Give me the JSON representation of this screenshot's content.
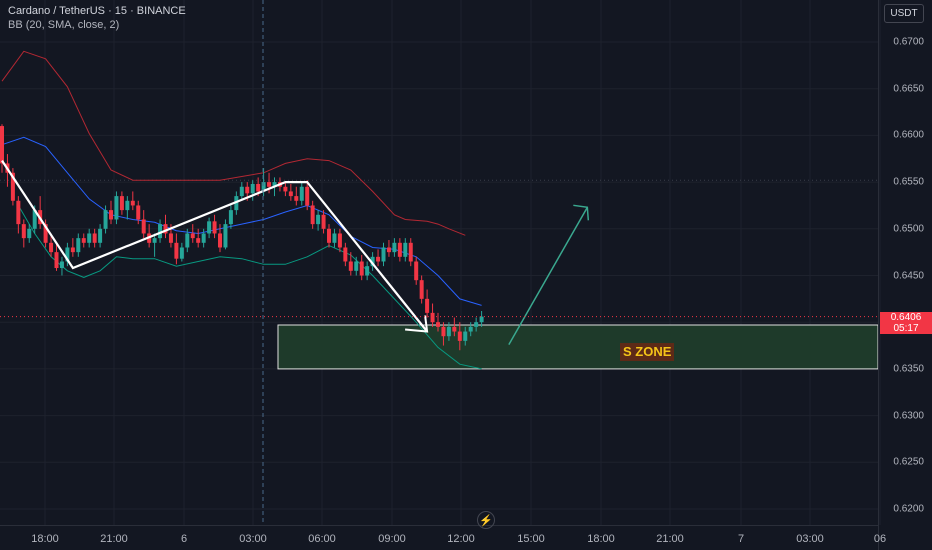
{
  "header": {
    "symbol_line": "Cardano / TetherUS · 15 · BINANCE",
    "indicator_line": "BB (20, SMA, close, 2)"
  },
  "currency_button": "USDT",
  "price_axis_ticks": [
    "0.6700",
    "0.6650",
    "0.6600",
    "0.6550",
    "0.6500",
    "0.6450",
    "0.6400",
    "0.6350",
    "0.6300",
    "0.6250",
    "0.6200"
  ],
  "time_axis_ticks": [
    "18:00",
    "21:00",
    "6",
    "03:00",
    "06:00",
    "09:00",
    "12:00",
    "15:00",
    "18:00",
    "21:00",
    "7",
    "03:00",
    "06"
  ],
  "last_price": {
    "value": "0.6406",
    "countdown": "05:17"
  },
  "zone_label": "S ZONE",
  "colors": {
    "background": "#131722",
    "up": "#26a69a",
    "down": "#f23645",
    "bb_upper": "#b22833",
    "bb_basis": "#2962ff",
    "bb_lower": "#089981",
    "zone_fill": "#1e3a2a",
    "zone_border": "#e0e0e0",
    "arrow_up": "#3aa88f"
  },
  "chart_data": {
    "type": "candlestick",
    "title": "Cardano / TetherUS · 15 · BINANCE",
    "indicator": "BB (20, SMA, close, 2)",
    "ylim": [
      0.6195,
      0.6725
    ],
    "y_ticks": [
      0.67,
      0.665,
      0.66,
      0.655,
      0.65,
      0.645,
      0.64,
      0.635,
      0.63,
      0.625,
      0.62
    ],
    "candles": [
      [
        0.661,
        0.6612,
        0.656,
        0.657
      ],
      [
        0.657,
        0.658,
        0.6545,
        0.656
      ],
      [
        0.656,
        0.6565,
        0.6525,
        0.653
      ],
      [
        0.653,
        0.6535,
        0.6495,
        0.6505
      ],
      [
        0.6505,
        0.651,
        0.648,
        0.649
      ],
      [
        0.649,
        0.6505,
        0.6485,
        0.65
      ],
      [
        0.65,
        0.6525,
        0.6495,
        0.652
      ],
      [
        0.652,
        0.6535,
        0.65,
        0.6505
      ],
      [
        0.6505,
        0.651,
        0.648,
        0.6485
      ],
      [
        0.6485,
        0.6495,
        0.647,
        0.6475
      ],
      [
        0.6475,
        0.6485,
        0.6455,
        0.6458
      ],
      [
        0.6458,
        0.647,
        0.645,
        0.6465
      ],
      [
        0.6465,
        0.6485,
        0.646,
        0.648
      ],
      [
        0.648,
        0.649,
        0.647,
        0.6475
      ],
      [
        0.6475,
        0.6495,
        0.647,
        0.649
      ],
      [
        0.649,
        0.6495,
        0.648,
        0.6485
      ],
      [
        0.6485,
        0.65,
        0.648,
        0.6495
      ],
      [
        0.6495,
        0.65,
        0.648,
        0.6485
      ],
      [
        0.6485,
        0.6505,
        0.648,
        0.65
      ],
      [
        0.65,
        0.6525,
        0.6495,
        0.652
      ],
      [
        0.652,
        0.653,
        0.6505,
        0.651
      ],
      [
        0.651,
        0.654,
        0.6505,
        0.6535
      ],
      [
        0.6535,
        0.654,
        0.6515,
        0.652
      ],
      [
        0.652,
        0.6535,
        0.651,
        0.653
      ],
      [
        0.653,
        0.654,
        0.652,
        0.6525
      ],
      [
        0.6525,
        0.653,
        0.6505,
        0.651
      ],
      [
        0.651,
        0.652,
        0.649,
        0.6495
      ],
      [
        0.6495,
        0.6505,
        0.648,
        0.6485
      ],
      [
        0.6485,
        0.6495,
        0.647,
        0.649
      ],
      [
        0.649,
        0.651,
        0.6485,
        0.6505
      ],
      [
        0.6505,
        0.6515,
        0.649,
        0.6495
      ],
      [
        0.6495,
        0.6505,
        0.648,
        0.6485
      ],
      [
        0.6485,
        0.6495,
        0.6462,
        0.6468
      ],
      [
        0.6468,
        0.6485,
        0.6465,
        0.648
      ],
      [
        0.648,
        0.65,
        0.6475,
        0.6495
      ],
      [
        0.6495,
        0.6505,
        0.6485,
        0.649
      ],
      [
        0.649,
        0.65,
        0.648,
        0.6485
      ],
      [
        0.6485,
        0.65,
        0.648,
        0.6495
      ],
      [
        0.6495,
        0.6512,
        0.649,
        0.6508
      ],
      [
        0.6508,
        0.6515,
        0.649,
        0.6495
      ],
      [
        0.6495,
        0.6505,
        0.6475,
        0.648
      ],
      [
        0.648,
        0.651,
        0.6478,
        0.6505
      ],
      [
        0.6505,
        0.6525,
        0.65,
        0.652
      ],
      [
        0.652,
        0.654,
        0.6515,
        0.6535
      ],
      [
        0.6535,
        0.655,
        0.653,
        0.6545
      ],
      [
        0.6545,
        0.655,
        0.653,
        0.6538
      ],
      [
        0.6538,
        0.6552,
        0.653,
        0.6548
      ],
      [
        0.6548,
        0.6555,
        0.6535,
        0.654
      ],
      [
        0.654,
        0.6565,
        0.6535,
        0.655
      ],
      [
        0.655,
        0.656,
        0.6538,
        0.6545
      ],
      [
        0.6545,
        0.6555,
        0.6535,
        0.655
      ],
      [
        0.655,
        0.6555,
        0.654,
        0.6545
      ],
      [
        0.6545,
        0.655,
        0.6535,
        0.654
      ],
      [
        0.654,
        0.6548,
        0.653,
        0.6535
      ],
      [
        0.6535,
        0.6545,
        0.6525,
        0.653
      ],
      [
        0.653,
        0.655,
        0.6525,
        0.6545
      ],
      [
        0.6545,
        0.6552,
        0.652,
        0.6525
      ],
      [
        0.6525,
        0.653,
        0.65,
        0.6505
      ],
      [
        0.6505,
        0.652,
        0.6498,
        0.6515
      ],
      [
        0.6515,
        0.652,
        0.6495,
        0.65
      ],
      [
        0.65,
        0.6505,
        0.648,
        0.6485
      ],
      [
        0.6485,
        0.65,
        0.648,
        0.6495
      ],
      [
        0.6495,
        0.65,
        0.6475,
        0.648
      ],
      [
        0.648,
        0.6485,
        0.646,
        0.6465
      ],
      [
        0.6465,
        0.6475,
        0.645,
        0.6455
      ],
      [
        0.6455,
        0.647,
        0.645,
        0.6465
      ],
      [
        0.6465,
        0.6472,
        0.6445,
        0.645
      ],
      [
        0.645,
        0.6465,
        0.6445,
        0.646
      ],
      [
        0.646,
        0.6475,
        0.6455,
        0.647
      ],
      [
        0.647,
        0.6478,
        0.646,
        0.6465
      ],
      [
        0.6465,
        0.6485,
        0.646,
        0.648
      ],
      [
        0.648,
        0.6488,
        0.647,
        0.6475
      ],
      [
        0.6475,
        0.649,
        0.647,
        0.6485
      ],
      [
        0.6485,
        0.649,
        0.6465,
        0.647
      ],
      [
        0.647,
        0.649,
        0.6465,
        0.6485
      ],
      [
        0.6485,
        0.649,
        0.646,
        0.6465
      ],
      [
        0.6465,
        0.647,
        0.644,
        0.6445
      ],
      [
        0.6445,
        0.645,
        0.642,
        0.6425
      ],
      [
        0.6425,
        0.6435,
        0.6405,
        0.641
      ],
      [
        0.641,
        0.642,
        0.6395,
        0.64
      ],
      [
        0.64,
        0.641,
        0.639,
        0.6395
      ],
      [
        0.6395,
        0.64,
        0.6375,
        0.6385
      ],
      [
        0.6385,
        0.64,
        0.638,
        0.6395
      ],
      [
        0.6395,
        0.6405,
        0.6385,
        0.639
      ],
      [
        0.639,
        0.64,
        0.637,
        0.638
      ],
      [
        0.638,
        0.6395,
        0.6375,
        0.639
      ],
      [
        0.639,
        0.64,
        0.6385,
        0.6395
      ],
      [
        0.6395,
        0.6405,
        0.639,
        0.64
      ],
      [
        0.64,
        0.6412,
        0.6395,
        0.6406
      ]
    ],
    "bollinger": {
      "upper": [
        [
          0,
          0.6658
        ],
        [
          4,
          0.669
        ],
        [
          8,
          0.6682
        ],
        [
          12,
          0.6652
        ],
        [
          16,
          0.6602
        ],
        [
          20,
          0.6563
        ],
        [
          24,
          0.6552
        ],
        [
          28,
          0.6552
        ],
        [
          32,
          0.6552
        ],
        [
          36,
          0.6552
        ],
        [
          40,
          0.6552
        ],
        [
          44,
          0.6556
        ],
        [
          48,
          0.656
        ],
        [
          52,
          0.657
        ],
        [
          56,
          0.6575
        ],
        [
          60,
          0.6573
        ],
        [
          64,
          0.6563
        ],
        [
          68,
          0.654
        ],
        [
          72,
          0.6515
        ],
        [
          74,
          0.651
        ],
        [
          78,
          0.6508
        ],
        [
          80,
          0.6505
        ],
        [
          82,
          0.65
        ],
        [
          85,
          0.6493
        ]
      ],
      "basis": [
        [
          0,
          0.659
        ],
        [
          4,
          0.6598
        ],
        [
          8,
          0.6588
        ],
        [
          12,
          0.656
        ],
        [
          16,
          0.6532
        ],
        [
          20,
          0.6515
        ],
        [
          24,
          0.651
        ],
        [
          28,
          0.6507
        ],
        [
          32,
          0.6498
        ],
        [
          36,
          0.6495
        ],
        [
          40,
          0.65
        ],
        [
          44,
          0.6505
        ],
        [
          48,
          0.651
        ],
        [
          52,
          0.6518
        ],
        [
          56,
          0.6525
        ],
        [
          60,
          0.6515
        ],
        [
          64,
          0.6492
        ],
        [
          68,
          0.648
        ],
        [
          72,
          0.6478
        ],
        [
          76,
          0.647
        ],
        [
          80,
          0.645
        ],
        [
          84,
          0.6425
        ],
        [
          88,
          0.6418
        ]
      ],
      "lower": [
        [
          3,
          0.6525
        ],
        [
          6,
          0.6495
        ],
        [
          9,
          0.647
        ],
        [
          12,
          0.6455
        ],
        [
          15,
          0.6448
        ],
        [
          18,
          0.6455
        ],
        [
          21,
          0.647
        ],
        [
          24,
          0.6468
        ],
        [
          28,
          0.6468
        ],
        [
          32,
          0.646
        ],
        [
          36,
          0.6465
        ],
        [
          40,
          0.647
        ],
        [
          44,
          0.6468
        ],
        [
          48,
          0.6462
        ],
        [
          52,
          0.6462
        ],
        [
          56,
          0.647
        ],
        [
          60,
          0.6482
        ],
        [
          64,
          0.6472
        ],
        [
          68,
          0.645
        ],
        [
          72,
          0.6425
        ],
        [
          76,
          0.64
        ],
        [
          80,
          0.6373
        ],
        [
          84,
          0.6355
        ],
        [
          88,
          0.635
        ]
      ]
    },
    "last_price": 0.6406,
    "support_zone": {
      "label": "S ZONE",
      "low": 0.635,
      "high": 0.6397
    }
  }
}
